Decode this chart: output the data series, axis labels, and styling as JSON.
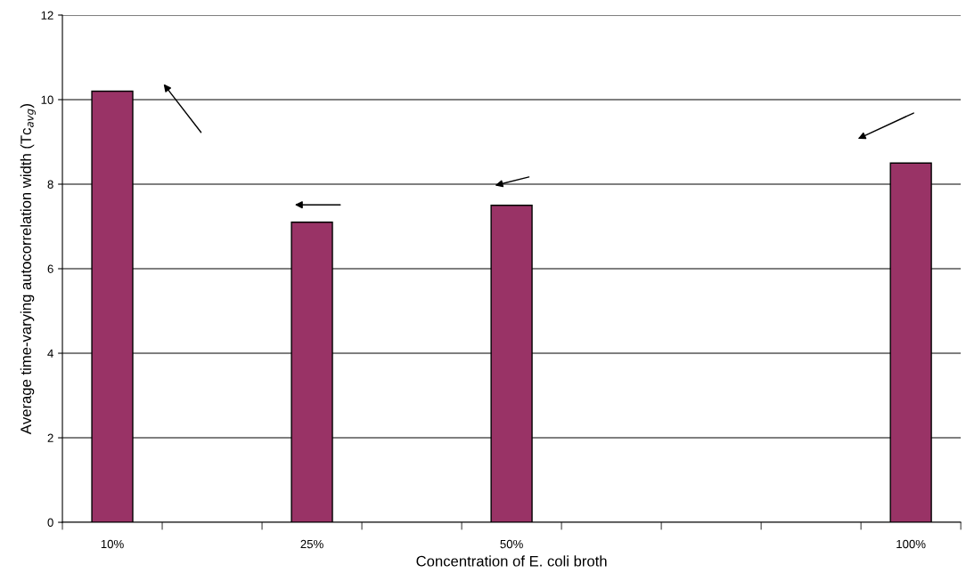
{
  "chart_data": {
    "type": "bar",
    "xlabel": "Concentration of E. coli broth",
    "ylabel": "Average time-varying autocorrelation width (Tc$_{avg}$)",
    "categories": [
      "10%",
      null,
      "25%",
      null,
      "50%",
      null,
      null,
      null,
      "100%"
    ],
    "values": [
      10.2,
      null,
      7.1,
      null,
      7.5,
      null,
      null,
      null,
      8.5
    ],
    "color": "#993366",
    "ylim": [
      0,
      12
    ],
    "yticks": [
      0,
      2,
      4,
      6,
      8,
      10,
      12
    ],
    "grid": "y",
    "legend": false
  }
}
